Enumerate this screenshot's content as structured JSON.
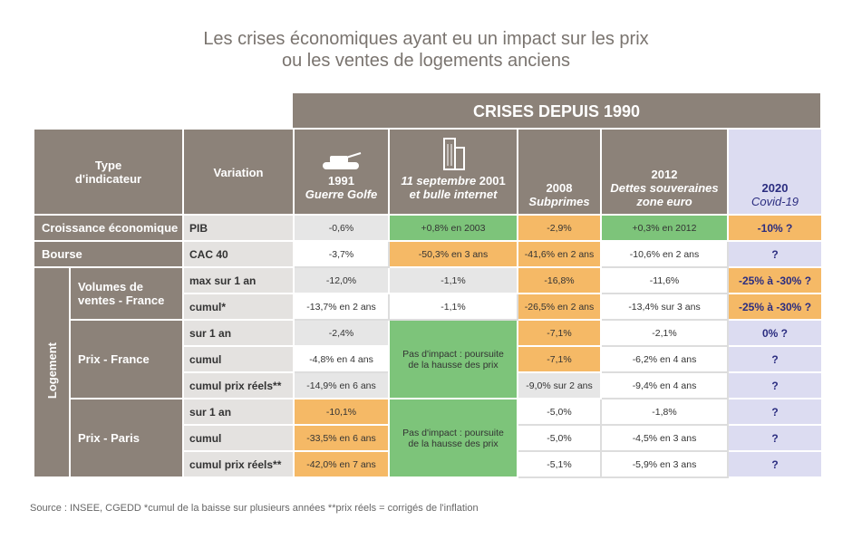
{
  "title": [
    "Les crises économiques ayant eu un impact sur les prix",
    "ou les ventes de logements anciens"
  ],
  "banner": "CRISES DEPUIS 1990",
  "header": {
    "type": [
      "Type",
      "d'indicateur"
    ],
    "variation": "Variation",
    "columns": [
      {
        "year": "1991",
        "label": "Guerre Golfe"
      },
      {
        "prefix": "11 septembre",
        "year": "2001",
        "label": "et bulle internet"
      },
      {
        "year": "2008",
        "label": "Subprimes"
      },
      {
        "year": "2012",
        "label": "Dettes souveraines zone euro"
      },
      {
        "year": "2020",
        "label": "Covid-19"
      }
    ]
  },
  "groups": [
    "Croissance économique",
    "Bourse",
    "Logement"
  ],
  "subgroups": [
    "Volumes de ventes - France",
    "Prix - France",
    "Prix - Paris"
  ],
  "variations": [
    "PIB",
    "CAC 40",
    "max sur 1 an",
    "cumul*",
    "sur 1 an",
    "cumul",
    "cumul prix réels**",
    "sur 1 an",
    "cumul",
    "cumul prix réels**"
  ],
  "table": {
    "rows": [
      [
        "-0,6%",
        "+0,8% en 2003",
        "-2,9%",
        "+0,3% en 2012",
        "-10% ?"
      ],
      [
        "-3,7%",
        "-50,3% en 3 ans",
        "-41,6% en 2 ans",
        "-10,6% en 2 ans",
        "?"
      ],
      [
        "-12,0%",
        "-1,1%",
        "-16,8%",
        "-11,6%",
        "-25% à -30% ?"
      ],
      [
        "-13,7% en 2 ans",
        "-1,1%",
        "-26,5% en 2 ans",
        "-13,4% sur 3 ans",
        "-25% à -30% ?"
      ],
      [
        "-2,4%",
        "Pas d'impact : poursuite de la hausse des prix",
        "-7,1%",
        "-2,1%",
        "0% ?"
      ],
      [
        "-4,8% en 4 ans",
        "-7,1%",
        "-6,2% en 4 ans",
        "?"
      ],
      [
        "-14,9% en 6 ans",
        "-9,0% sur 2 ans",
        "-9,4% en 4 ans",
        "?"
      ],
      [
        "-10,1%",
        "Pas d'impact : poursuite de la hausse des prix",
        "-5,0%",
        "-1,8%",
        "?"
      ],
      [
        "-33,5% en 6 ans",
        "-5,0%",
        "-4,5% en 3 ans",
        "?"
      ],
      [
        "-42,0% en 7 ans",
        "-5,1%",
        "-5,9% en 3 ans",
        "?"
      ]
    ]
  },
  "source": "Source : INSEE, CGEDD *cumul de la baisse sur plusieurs années **prix réels = corrigés de l'inflation"
}
